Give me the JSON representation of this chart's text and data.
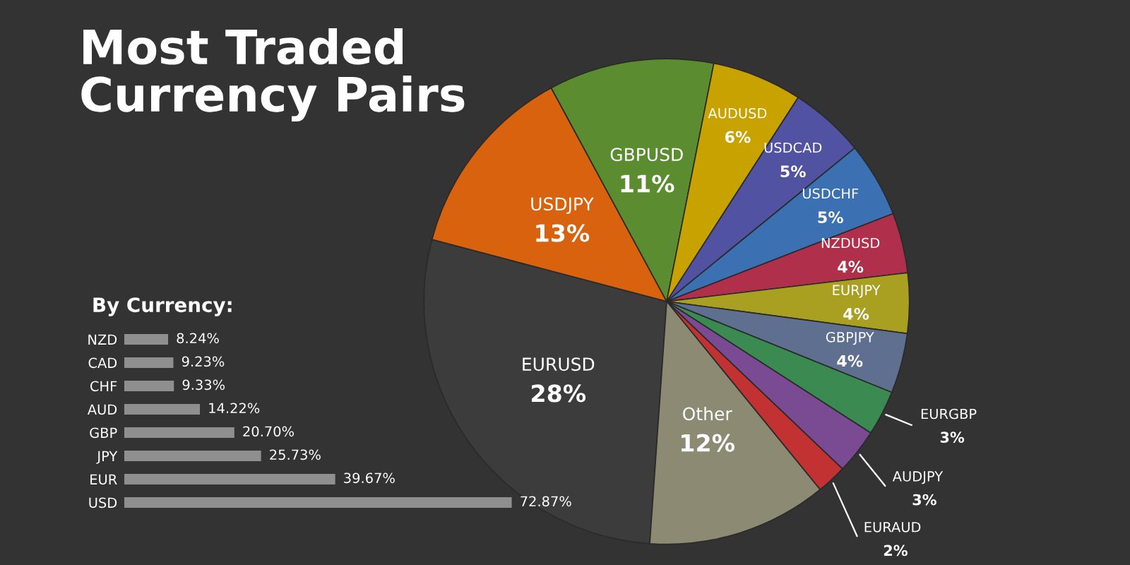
{
  "chart_data": [
    {
      "type": "pie",
      "title": "Most Traded\nCurrency Pairs",
      "categories": [
        "EURUSD",
        "USDJPY",
        "GBPUSD",
        "AUDUSD",
        "USDCAD",
        "USDCHF",
        "NZDUSD",
        "EURJPY",
        "GBPJPY",
        "EURGBP",
        "AUDJPY",
        "EURAUD",
        "Other"
      ],
      "values": [
        28,
        13,
        11,
        6,
        5,
        5,
        4,
        4,
        4,
        3,
        3,
        2,
        12
      ],
      "value_labels": [
        "28%",
        "13%",
        "11%",
        "6%",
        "5%",
        "5%",
        "4%",
        "4%",
        "4%",
        "3%",
        "3%",
        "2%",
        "12%"
      ],
      "colors": [
        "#3c3c3c",
        "#d8620e",
        "#5b8c2f",
        "#c8a300",
        "#5252a2",
        "#3b70b2",
        "#b0304c",
        "#a9a021",
        "#5f6f8f",
        "#3a8a52",
        "#7a4a92",
        "#c23232",
        "#8c8a72"
      ]
    },
    {
      "type": "bar",
      "orientation": "horizontal",
      "title": "By Currency:",
      "categories": [
        "NZD",
        "CAD",
        "CHF",
        "AUD",
        "GBP",
        "JPY",
        "EUR",
        "USD"
      ],
      "values": [
        8.24,
        9.23,
        9.33,
        14.22,
        20.7,
        25.73,
        39.67,
        72.87
      ],
      "value_labels": [
        "8.24%",
        "9.23%",
        "9.33%",
        "14.22%",
        "20.70%",
        "25.73%",
        "39.67%",
        "72.87%"
      ],
      "color": "#8f8f8f",
      "tick_labels": "y"
    }
  ]
}
